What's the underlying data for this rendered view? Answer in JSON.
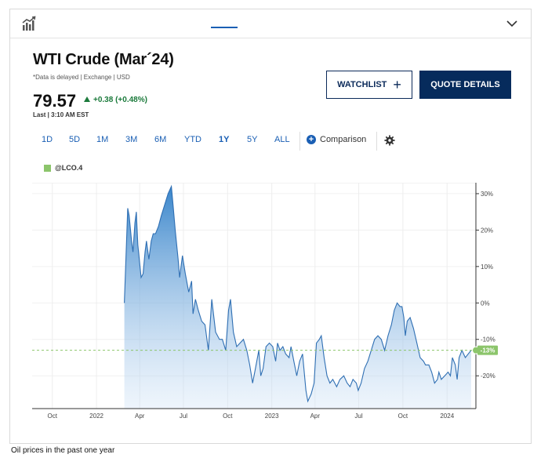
{
  "header": {
    "logo_icon": "chart-growth-icon",
    "collapse_icon": "chevron-down-icon"
  },
  "quote": {
    "title": "WTI Crude (Mar´24)",
    "delayed_note": "*Data is delayed | Exchange | USD",
    "price": "79.57",
    "change": "+0.38 (+0.48%)",
    "last_updated": "Last | 3:10 AM EST"
  },
  "buttons": {
    "watchlist": "WATCHLIST",
    "quote_details": "QUOTE DETAILS"
  },
  "ranges": {
    "tabs": [
      "1D",
      "5D",
      "1M",
      "3M",
      "6M",
      "YTD",
      "1Y",
      "5Y",
      "ALL"
    ],
    "active": "1Y",
    "comparison": "Comparison"
  },
  "legend": {
    "symbol": "@LCO.4",
    "color": "#8cc56b"
  },
  "chart_data": {
    "type": "area",
    "x_labels": [
      "Oct",
      "2022",
      "Apr",
      "Jul",
      "Oct",
      "2023",
      "Apr",
      "Jul",
      "Oct",
      "2024"
    ],
    "y_labels": [
      "30%",
      "20%",
      "10%",
      "0%",
      "-10%",
      "-20%"
    ],
    "y_ticks": [
      30,
      20,
      10,
      0,
      -10,
      -20
    ],
    "ylim": [
      -29,
      33
    ],
    "current_label": "-13%",
    "current_value": -13,
    "reference_line": -13,
    "x_dates": [
      "2021-08-20",
      "2024-03-01"
    ],
    "series": [
      {
        "values": [
          [
            "2022-02-28",
            0
          ],
          [
            "2022-03-07",
            26
          ],
          [
            "2022-03-10",
            24
          ],
          [
            "2022-03-15",
            17
          ],
          [
            "2022-03-18",
            14
          ],
          [
            "2022-03-22",
            22
          ],
          [
            "2022-03-25",
            25
          ],
          [
            "2022-03-28",
            16
          ],
          [
            "2022-04-04",
            7
          ],
          [
            "2022-04-08",
            8
          ],
          [
            "2022-04-12",
            14
          ],
          [
            "2022-04-15",
            17
          ],
          [
            "2022-04-20",
            12
          ],
          [
            "2022-04-25",
            17
          ],
          [
            "2022-04-29",
            19
          ],
          [
            "2022-05-04",
            19
          ],
          [
            "2022-05-10",
            21
          ],
          [
            "2022-05-16",
            24
          ],
          [
            "2022-05-23",
            27
          ],
          [
            "2022-05-30",
            30
          ],
          [
            "2022-06-06",
            32
          ],
          [
            "2022-06-10",
            26
          ],
          [
            "2022-06-14",
            20
          ],
          [
            "2022-06-20",
            12
          ],
          [
            "2022-06-23",
            7
          ],
          [
            "2022-06-29",
            13
          ],
          [
            "2022-07-05",
            8
          ],
          [
            "2022-07-12",
            3
          ],
          [
            "2022-07-18",
            6
          ],
          [
            "2022-07-21",
            -3
          ],
          [
            "2022-07-26",
            1
          ],
          [
            "2022-08-01",
            -2
          ],
          [
            "2022-08-08",
            -5
          ],
          [
            "2022-08-15",
            -6
          ],
          [
            "2022-08-22",
            -13
          ],
          [
            "2022-08-29",
            1
          ],
          [
            "2022-09-06",
            -8
          ],
          [
            "2022-09-14",
            -10
          ],
          [
            "2022-09-20",
            -10
          ],
          [
            "2022-09-27",
            -13
          ],
          [
            "2022-10-03",
            -2
          ],
          [
            "2022-10-07",
            1
          ],
          [
            "2022-10-13",
            -8
          ],
          [
            "2022-10-20",
            -12
          ],
          [
            "2022-10-27",
            -11
          ],
          [
            "2022-11-03",
            -10
          ],
          [
            "2022-11-10",
            -13
          ],
          [
            "2022-11-16",
            -17
          ],
          [
            "2022-11-22",
            -22
          ],
          [
            "2022-11-28",
            -18
          ],
          [
            "2022-12-05",
            -13
          ],
          [
            "2022-12-09",
            -20
          ],
          [
            "2022-12-14",
            -18
          ],
          [
            "2022-12-20",
            -12
          ],
          [
            "2022-12-27",
            -11
          ],
          [
            "2023-01-03",
            -12
          ],
          [
            "2023-01-09",
            -16
          ],
          [
            "2023-01-13",
            -11
          ],
          [
            "2023-01-18",
            -13
          ],
          [
            "2023-01-24",
            -12
          ],
          [
            "2023-01-30",
            -14
          ],
          [
            "2023-02-06",
            -15
          ],
          [
            "2023-02-10",
            -12
          ],
          [
            "2023-02-16",
            -16
          ],
          [
            "2023-02-22",
            -20
          ],
          [
            "2023-02-28",
            -16
          ],
          [
            "2023-03-06",
            -14
          ],
          [
            "2023-03-13",
            -24
          ],
          [
            "2023-03-17",
            -27
          ],
          [
            "2023-03-24",
            -25
          ],
          [
            "2023-03-30",
            -22
          ],
          [
            "2023-04-04",
            -11
          ],
          [
            "2023-04-10",
            -10
          ],
          [
            "2023-04-14",
            -9
          ],
          [
            "2023-04-20",
            -15
          ],
          [
            "2023-04-26",
            -20
          ],
          [
            "2023-05-02",
            -22
          ],
          [
            "2023-05-08",
            -21
          ],
          [
            "2023-05-16",
            -23
          ],
          [
            "2023-05-23",
            -21
          ],
          [
            "2023-05-31",
            -20
          ],
          [
            "2023-06-07",
            -22
          ],
          [
            "2023-06-13",
            -23
          ],
          [
            "2023-06-19",
            -21
          ],
          [
            "2023-06-26",
            -22
          ],
          [
            "2023-06-30",
            -24
          ],
          [
            "2023-07-06",
            -22
          ],
          [
            "2023-07-13",
            -18
          ],
          [
            "2023-07-20",
            -16
          ],
          [
            "2023-07-27",
            -13
          ],
          [
            "2023-08-03",
            -10
          ],
          [
            "2023-08-10",
            -9
          ],
          [
            "2023-08-17",
            -10
          ],
          [
            "2023-08-24",
            -13
          ],
          [
            "2023-08-31",
            -9
          ],
          [
            "2023-09-07",
            -6
          ],
          [
            "2023-09-13",
            -2
          ],
          [
            "2023-09-19",
            0
          ],
          [
            "2023-09-25",
            -1
          ],
          [
            "2023-09-29",
            -1
          ],
          [
            "2023-10-03",
            -4
          ],
          [
            "2023-10-06",
            -9
          ],
          [
            "2023-10-10",
            -5
          ],
          [
            "2023-10-16",
            -4
          ],
          [
            "2023-10-23",
            -7
          ],
          [
            "2023-10-30",
            -11
          ],
          [
            "2023-11-06",
            -15
          ],
          [
            "2023-11-13",
            -16
          ],
          [
            "2023-11-17",
            -17
          ],
          [
            "2023-11-24",
            -17
          ],
          [
            "2023-11-30",
            -19
          ],
          [
            "2023-12-06",
            -22
          ],
          [
            "2023-12-12",
            -21
          ],
          [
            "2023-12-15",
            -19
          ],
          [
            "2023-12-20",
            -21
          ],
          [
            "2023-12-27",
            -20
          ],
          [
            "2024-01-03",
            -19
          ],
          [
            "2024-01-08",
            -20
          ],
          [
            "2024-01-12",
            -15
          ],
          [
            "2024-01-18",
            -17
          ],
          [
            "2024-01-22",
            -21
          ],
          [
            "2024-01-26",
            -15
          ],
          [
            "2024-02-01",
            -13
          ],
          [
            "2024-02-08",
            -15
          ],
          [
            "2024-02-14",
            -14
          ],
          [
            "2024-02-20",
            -13
          ]
        ]
      }
    ],
    "area_color": "#2f7fc8",
    "line_color": "#2f6fb3",
    "grid": true
  },
  "caption": "Oil prices in the past one year"
}
